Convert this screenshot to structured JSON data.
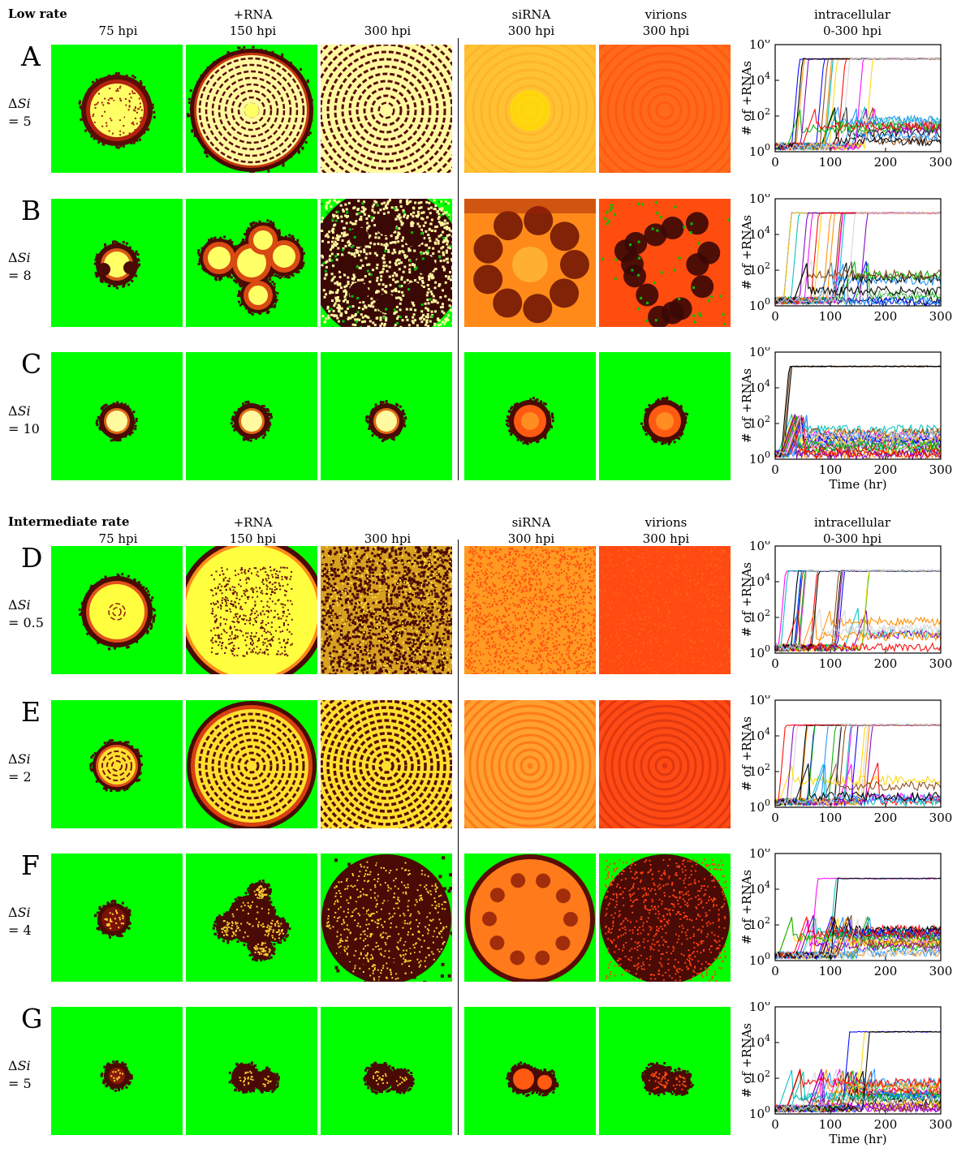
{
  "sections": [
    {
      "title": "Low rate",
      "columns": [
        {
          "line1": "",
          "line2": "75 hpi"
        },
        {
          "line1": "+RNA",
          "line2": "150 hpi"
        },
        {
          "line1": "",
          "line2": "300 hpi"
        },
        {
          "line1": "siRNA",
          "line2": "300 hpi"
        },
        {
          "line1": "virions",
          "line2": "300 hpi"
        },
        {
          "line1": "intracellular",
          "line2": "0-300 hpi"
        }
      ],
      "rows": [
        {
          "letter": "A",
          "delta_label": "ΔSi",
          "value": "= 5",
          "patterns": [
            "disc-spotted",
            "disc-rings",
            "full-stripes",
            "full-yellow",
            "full-orange"
          ],
          "plot_xlabel": ""
        },
        {
          "letter": "B",
          "delta_label": "ΔSi",
          "value": "= 8",
          "patterns": [
            "blob-small",
            "clover",
            "patchy-yellow",
            "patchy-orange",
            "patchy-dark"
          ],
          "plot_xlabel": ""
        },
        {
          "letter": "C",
          "delta_label": "ΔSi",
          "value": "= 10",
          "patterns": [
            "spot-yellow",
            "spot-yellow",
            "spot-yellow",
            "spot-orange",
            "spot-orange"
          ],
          "plot_xlabel": "Time (hr)"
        }
      ]
    },
    {
      "title": "Intermediate rate",
      "columns": [
        {
          "line1": "",
          "line2": "75 hpi"
        },
        {
          "line1": "+RNA",
          "line2": "150 hpi"
        },
        {
          "line1": "",
          "line2": "300 hpi"
        },
        {
          "line1": "siRNA",
          "line2": "300 hpi"
        },
        {
          "line1": "virions",
          "line2": "300 hpi"
        },
        {
          "line1": "intracellular",
          "line2": "0-300 hpi"
        }
      ],
      "rows": [
        {
          "letter": "D",
          "delta_label": "ΔSi",
          "value": "= 0.5",
          "patterns": [
            "disc-speckle",
            "big-speckle",
            "full-speckle",
            "full-orange-speckle",
            "full-red"
          ],
          "plot_xlabel": ""
        },
        {
          "letter": "E",
          "delta_label": "ΔSi",
          "value": "= 2",
          "patterns": [
            "disc-target",
            "big-target",
            "full-target",
            "full-orange-rings",
            "full-red-rings"
          ],
          "plot_xlabel": ""
        },
        {
          "letter": "F",
          "delta_label": "ΔSi",
          "value": "= 4",
          "patterns": [
            "blob-dots",
            "cluster-dots",
            "wide-dots",
            "wide-orange",
            "wide-dark"
          ],
          "plot_xlabel": ""
        },
        {
          "letter": "G",
          "delta_label": "ΔSi",
          "value": "= 5",
          "patterns": [
            "tiny-blob",
            "double-blob",
            "double-blob",
            "double-orange",
            "double-dark"
          ],
          "plot_xlabel": "Time (hr)"
        }
      ]
    }
  ],
  "plot": {
    "ylabel": "# of +RNAs",
    "xticks": [
      "0",
      "100",
      "200",
      "300"
    ],
    "yticks": [
      "10^0",
      "10^2",
      "10^4",
      "10^6"
    ],
    "xlim": [
      0,
      300
    ],
    "ylim_log10": [
      0,
      6
    ]
  },
  "colors": {
    "green": "#00ff00",
    "yellow": "#ffff66",
    "pale": "#fff9a0",
    "orange": "#ff8a1a",
    "red": "#ff4d0d",
    "dark": "#4a0a05",
    "series": [
      "#000000",
      "#d6d6d6",
      "#ff00ff",
      "#00c0c0",
      "#0000ff",
      "#ffd700",
      "#ff8c00",
      "#00b000",
      "#8000c0",
      "#ff0000",
      "#8b4513",
      "#1e90ff"
    ]
  }
}
